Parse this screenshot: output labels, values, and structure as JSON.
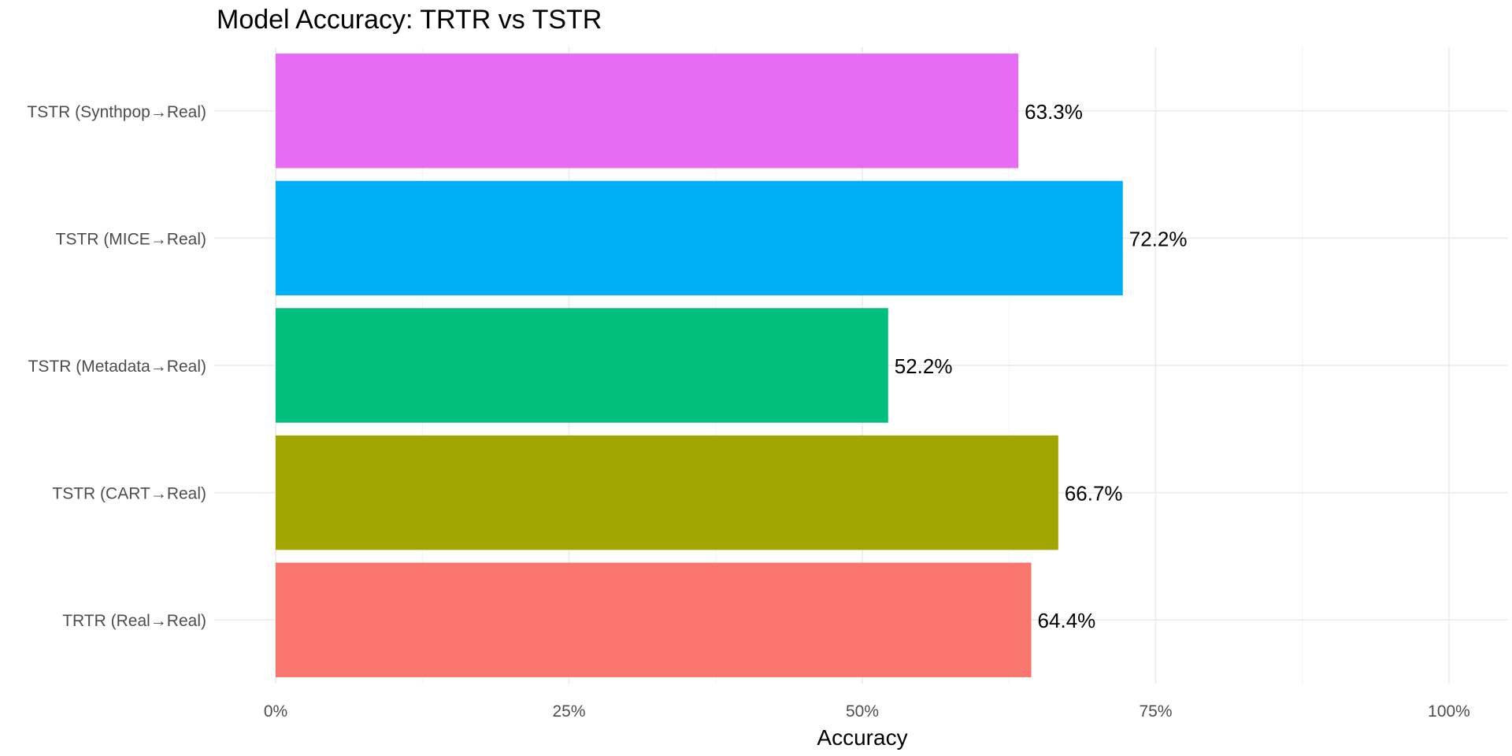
{
  "chart_data": {
    "type": "bar",
    "orientation": "horizontal",
    "title": "Model Accuracy: TRTR vs TSTR",
    "xlabel": "Accuracy",
    "ylabel": "",
    "xlim": [
      0,
      1
    ],
    "x_ticks": [
      0,
      0.25,
      0.5,
      0.75,
      1.0
    ],
    "x_tick_labels": [
      "0%",
      "25%",
      "50%",
      "75%",
      "100%"
    ],
    "grid": true,
    "legend": "none",
    "categories": [
      "TRTR (Real→Real)",
      "TSTR (CART→Real)",
      "TSTR (Metadata→Real)",
      "TSTR (MICE→Real)",
      "TSTR (Synthpop→Real)"
    ],
    "values": [
      0.644,
      0.667,
      0.522,
      0.722,
      0.633
    ],
    "value_labels": [
      "64.4%",
      "66.7%",
      "52.2%",
      "72.2%",
      "63.3%"
    ],
    "colors": [
      "#F8766D",
      "#A3A500",
      "#00BF7D",
      "#00B0F6",
      "#E76BF3"
    ]
  }
}
